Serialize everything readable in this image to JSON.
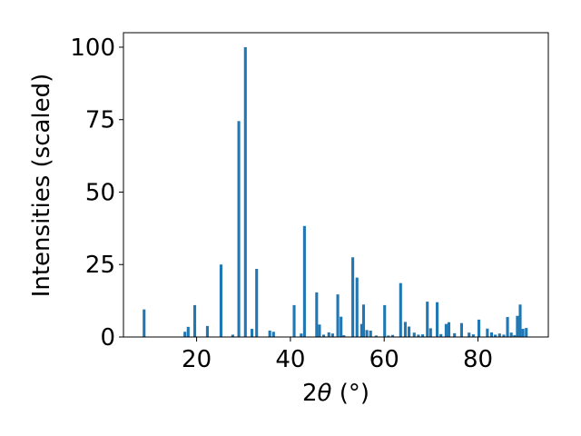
{
  "chart_data": {
    "type": "bar",
    "title": "",
    "xlabel_main": "2",
    "xlabel_theta": "θ",
    "xlabel_unit": " (°)",
    "ylabel": "Intensities (scaled)",
    "xlim": [
      4.4,
      95.0
    ],
    "ylim": [
      0,
      105
    ],
    "xticks": [
      20,
      40,
      60,
      80
    ],
    "yticks": [
      0,
      25,
      50,
      75,
      100
    ],
    "bar_width": 0.6,
    "color": "#1f77b4",
    "grid": false,
    "x": [
      8.8,
      17.5,
      18.2,
      19.6,
      22.3,
      25.2,
      27.7,
      29.0,
      30.4,
      31.8,
      32.8,
      35.6,
      36.4,
      40.8,
      42.3,
      43.0,
      45.6,
      46.2,
      47.1,
      48.2,
      49.0,
      50.1,
      50.8,
      51.4,
      53.3,
      54.2,
      55.2,
      55.6,
      56.3,
      57.1,
      58.3,
      60.1,
      60.9,
      61.8,
      63.5,
      64.5,
      65.3,
      66.4,
      67.3,
      68.2,
      69.2,
      69.9,
      71.3,
      72.1,
      73.2,
      73.8,
      75.0,
      76.5,
      78.1,
      79.0,
      80.2,
      82.0,
      82.9,
      83.7,
      84.6,
      85.5,
      86.3,
      87.1,
      87.8,
      88.4,
      89.0,
      89.6,
      90.3
    ],
    "y": [
      9.5,
      1.8,
      3.5,
      11,
      3.8,
      25,
      0.8,
      74.5,
      100,
      2.8,
      23.5,
      2.2,
      1.8,
      11,
      1.2,
      38.3,
      15.4,
      4.3,
      0.8,
      1.6,
      1.2,
      14.7,
      7.0,
      0.6,
      27.5,
      20.5,
      4.5,
      11.2,
      2.4,
      2.2,
      0.5,
      11.0,
      0.5,
      0.7,
      18.6,
      5.2,
      3.6,
      1.5,
      0.8,
      0.9,
      12.2,
      3.0,
      12.0,
      1.0,
      4.5,
      5.1,
      1.3,
      4.8,
      1.5,
      0.9,
      6.0,
      2.9,
      1.6,
      0.8,
      1.2,
      0.8,
      6.9,
      1.5,
      0.6,
      7.3,
      11.2,
      2.8,
      3.1
    ]
  }
}
